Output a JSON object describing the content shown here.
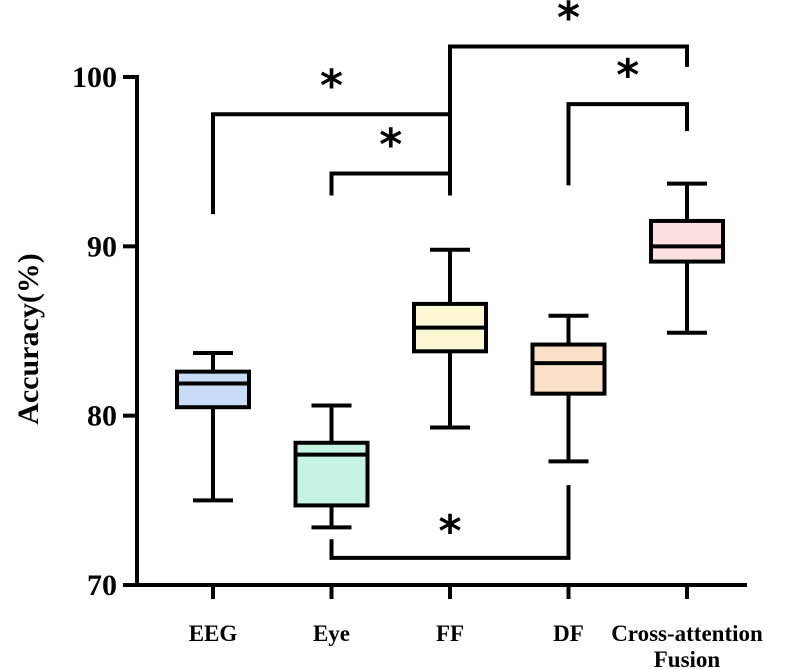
{
  "chart_data": {
    "type": "box",
    "ylabel": "Accuracy(%)",
    "ylim": [
      70,
      100
    ],
    "yticks": [
      70,
      80,
      90,
      100
    ],
    "categories": [
      {
        "lines": [
          "EEG"
        ]
      },
      {
        "lines": [
          "Eye"
        ]
      },
      {
        "lines": [
          "FF"
        ]
      },
      {
        "lines": [
          "DF"
        ]
      },
      {
        "lines": [
          "Cross-attention",
          "Fusion"
        ]
      }
    ],
    "boxes": [
      {
        "name": "EEG",
        "min": 75.0,
        "q1": 80.5,
        "median": 81.9,
        "q3": 82.6,
        "max": 83.7,
        "color": "#c9dcf6"
      },
      {
        "name": "Eye",
        "min": 73.4,
        "q1": 74.7,
        "median": 77.7,
        "q3": 78.4,
        "max": 80.6,
        "color": "#c6f3e2"
      },
      {
        "name": "FF",
        "min": 79.3,
        "q1": 83.8,
        "median": 85.2,
        "q3": 86.6,
        "max": 89.8,
        "color": "#fbf7d2"
      },
      {
        "name": "DF",
        "min": 77.3,
        "q1": 81.3,
        "median": 83.1,
        "q3": 84.2,
        "max": 85.9,
        "color": "#fbe0c8"
      },
      {
        "name": "Cross-attention Fusion",
        "min": 84.9,
        "q1": 89.1,
        "median": 90.0,
        "q3": 91.5,
        "max": 93.7,
        "color": "#fde0e0"
      }
    ],
    "significance": [
      {
        "from": 0,
        "to": 2,
        "label": "*",
        "left_start": 91.9,
        "right_start": 95.7,
        "bracket": 97.8,
        "dir": "up"
      },
      {
        "from": 1,
        "to": 2,
        "label": "*",
        "left_start": 93.0,
        "right_start": 93.0,
        "bracket": 94.3,
        "dir": "up"
      },
      {
        "from": 2,
        "to": 4,
        "label": "*",
        "left_start": 93.0,
        "right_start": 100.6,
        "bracket": 101.8,
        "dir": "up"
      },
      {
        "from": 3,
        "to": 4,
        "label": "*",
        "left_start": 93.6,
        "right_start": 96.8,
        "bracket": 98.4,
        "dir": "up"
      },
      {
        "from": 1,
        "to": 3,
        "label": "*",
        "left_start": 72.7,
        "right_start": 75.9,
        "bracket": 71.6,
        "dir": "down"
      }
    ]
  }
}
